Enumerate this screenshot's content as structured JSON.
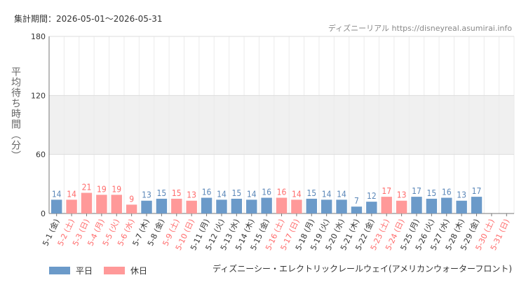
{
  "header": {
    "period": "集計期間：2026-05-01〜2026-05-31",
    "credit": "ディズニーリアル https://disneyreal.asumirai.info"
  },
  "footer": {
    "ride_name": "ディズニーシー・エレクトリックレールウェイ(アメリカンウォーターフロント)"
  },
  "chart_data": {
    "type": "bar",
    "ylabel": "平均待ち時間（分）",
    "xlabel": "",
    "ylim": [
      0,
      180
    ],
    "yticks": [
      0,
      60,
      120,
      180
    ],
    "grid": true,
    "legend_position": "bottom-left",
    "colors": {
      "weekday": "#6b9ac9",
      "holiday": "#ff9999",
      "weekday_text": "#5b87b8",
      "holiday_text": "#ff6b6b"
    },
    "legend": [
      {
        "key": "weekday",
        "label": "平日"
      },
      {
        "key": "holiday",
        "label": "休日"
      }
    ],
    "categories": [
      "5-1 (金)",
      "5-2 (土)",
      "5-3 (日)",
      "5-4 (月)",
      "5-5 (火)",
      "5-6 (水)",
      "5-7 (木)",
      "5-8 (金)",
      "5-9 (土)",
      "5-10 (日)",
      "5-11 (月)",
      "5-12 (火)",
      "5-13 (水)",
      "5-14 (木)",
      "5-15 (金)",
      "5-16 (土)",
      "5-17 (日)",
      "5-18 (月)",
      "5-19 (火)",
      "5-20 (水)",
      "5-21 (木)",
      "5-22 (金)",
      "5-23 (土)",
      "5-24 (日)",
      "5-25 (月)",
      "5-26 (火)",
      "5-27 (水)",
      "5-28 (木)",
      "5-29 (金)",
      "5-30 (土)",
      "5-31 (日)"
    ],
    "day_type": [
      "weekday",
      "holiday",
      "holiday",
      "holiday",
      "holiday",
      "holiday",
      "weekday",
      "weekday",
      "holiday",
      "holiday",
      "weekday",
      "weekday",
      "weekday",
      "weekday",
      "weekday",
      "holiday",
      "holiday",
      "weekday",
      "weekday",
      "weekday",
      "weekday",
      "weekday",
      "holiday",
      "holiday",
      "weekday",
      "weekday",
      "weekday",
      "weekday",
      "weekday",
      "holiday",
      "holiday"
    ],
    "values": [
      14,
      14,
      21,
      19,
      19,
      9,
      13,
      15,
      15,
      13,
      16,
      14,
      15,
      14,
      16,
      16,
      14,
      15,
      14,
      14,
      7,
      12,
      17,
      13,
      17,
      15,
      16,
      13,
      17,
      null,
      null
    ]
  }
}
